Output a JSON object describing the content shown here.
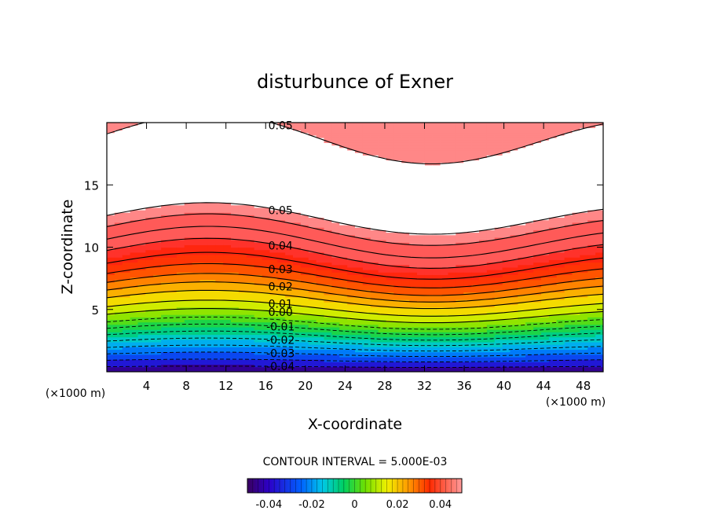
{
  "chart_data": {
    "type": "contour",
    "title": "disturbunce of Exner",
    "xlabel": "X-coordinate",
    "ylabel": "Z-coordinate",
    "x_unit": "(×1000 m)",
    "z_unit": "(×1000 m)",
    "xlim": [
      0,
      50
    ],
    "ylim": [
      0,
      20
    ],
    "x_ticks": [
      "4",
      "8",
      "12",
      "16",
      "20",
      "24",
      "28",
      "32",
      "36",
      "40",
      "44",
      "48"
    ],
    "y_ticks": [
      "5",
      "10",
      "15"
    ],
    "contour_interval_text": "CONTOUR INTERVAL = 5.000E-03",
    "contour_interval": 0.005,
    "color_range": [
      -0.05,
      0.05
    ],
    "colorbar_ticks": [
      "-0.04",
      "-0.02",
      "0",
      "0.02",
      "0.04"
    ],
    "contour_labels": [
      "0.05",
      "0.05",
      "0.04",
      "0.03",
      "0.02",
      "0.01",
      "0.00",
      "-0.01",
      "-0.02",
      "-0.03",
      "-0.04"
    ],
    "value_profile_at_x_center": [
      {
        "z": 0.0,
        "value": -0.05
      },
      {
        "z": 4.5,
        "value": 0.0
      },
      {
        "z": 9.5,
        "value": 0.04
      },
      {
        "z": 13.5,
        "value": 0.05
      },
      {
        "z": 18.5,
        "value": 0.05
      },
      {
        "z": 20.0,
        "value": 0.045
      }
    ],
    "outside_range_color": "#ffffff"
  }
}
